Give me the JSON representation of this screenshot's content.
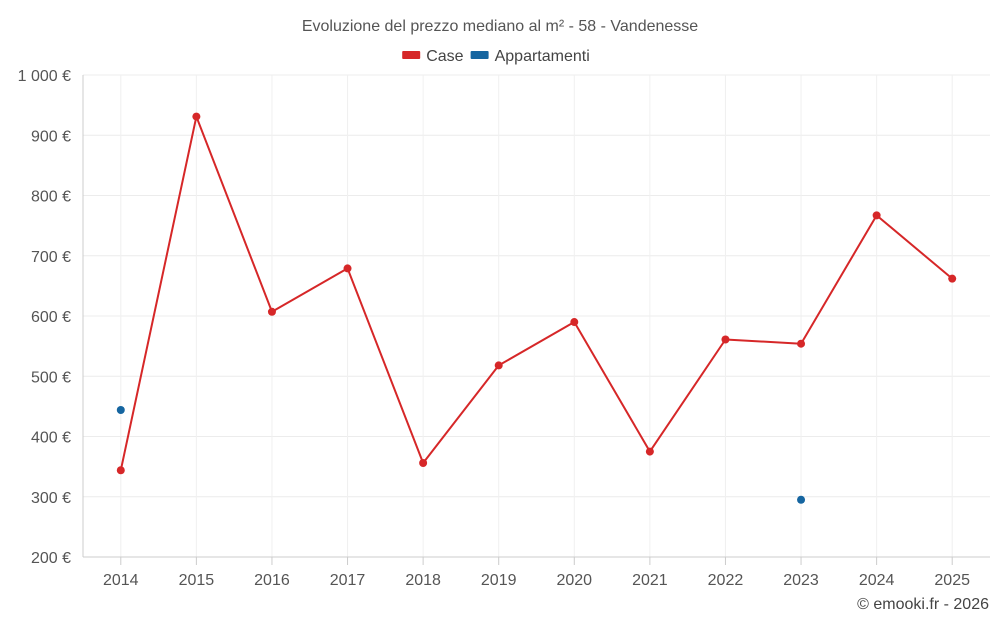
{
  "chart_data": {
    "type": "line",
    "title": "Evoluzione del prezzo mediano al m² - 58 - Vandenesse",
    "categories": [
      "2014",
      "2015",
      "2016",
      "2017",
      "2018",
      "2019",
      "2020",
      "2021",
      "2022",
      "2023",
      "2024",
      "2025"
    ],
    "series": [
      {
        "name": "Case",
        "color": "#d62728",
        "values": [
          344,
          931,
          607,
          679,
          356,
          518,
          590,
          375,
          561,
          554,
          767,
          662
        ]
      },
      {
        "name": "Appartamenti",
        "color": "#1565a0",
        "values": [
          444,
          null,
          null,
          null,
          null,
          null,
          null,
          null,
          null,
          295,
          null,
          null
        ]
      }
    ],
    "ylim": [
      200,
      1000
    ],
    "yticks": [
      200,
      300,
      400,
      500,
      600,
      700,
      800,
      900,
      1000
    ],
    "ytick_labels": [
      "200 €",
      "300 €",
      "400 €",
      "500 €",
      "600 €",
      "700 €",
      "800 €",
      "900 €",
      "1 000 €"
    ],
    "grid": true,
    "legend": "top-center"
  },
  "credit": "© emooki.fr - 2026"
}
